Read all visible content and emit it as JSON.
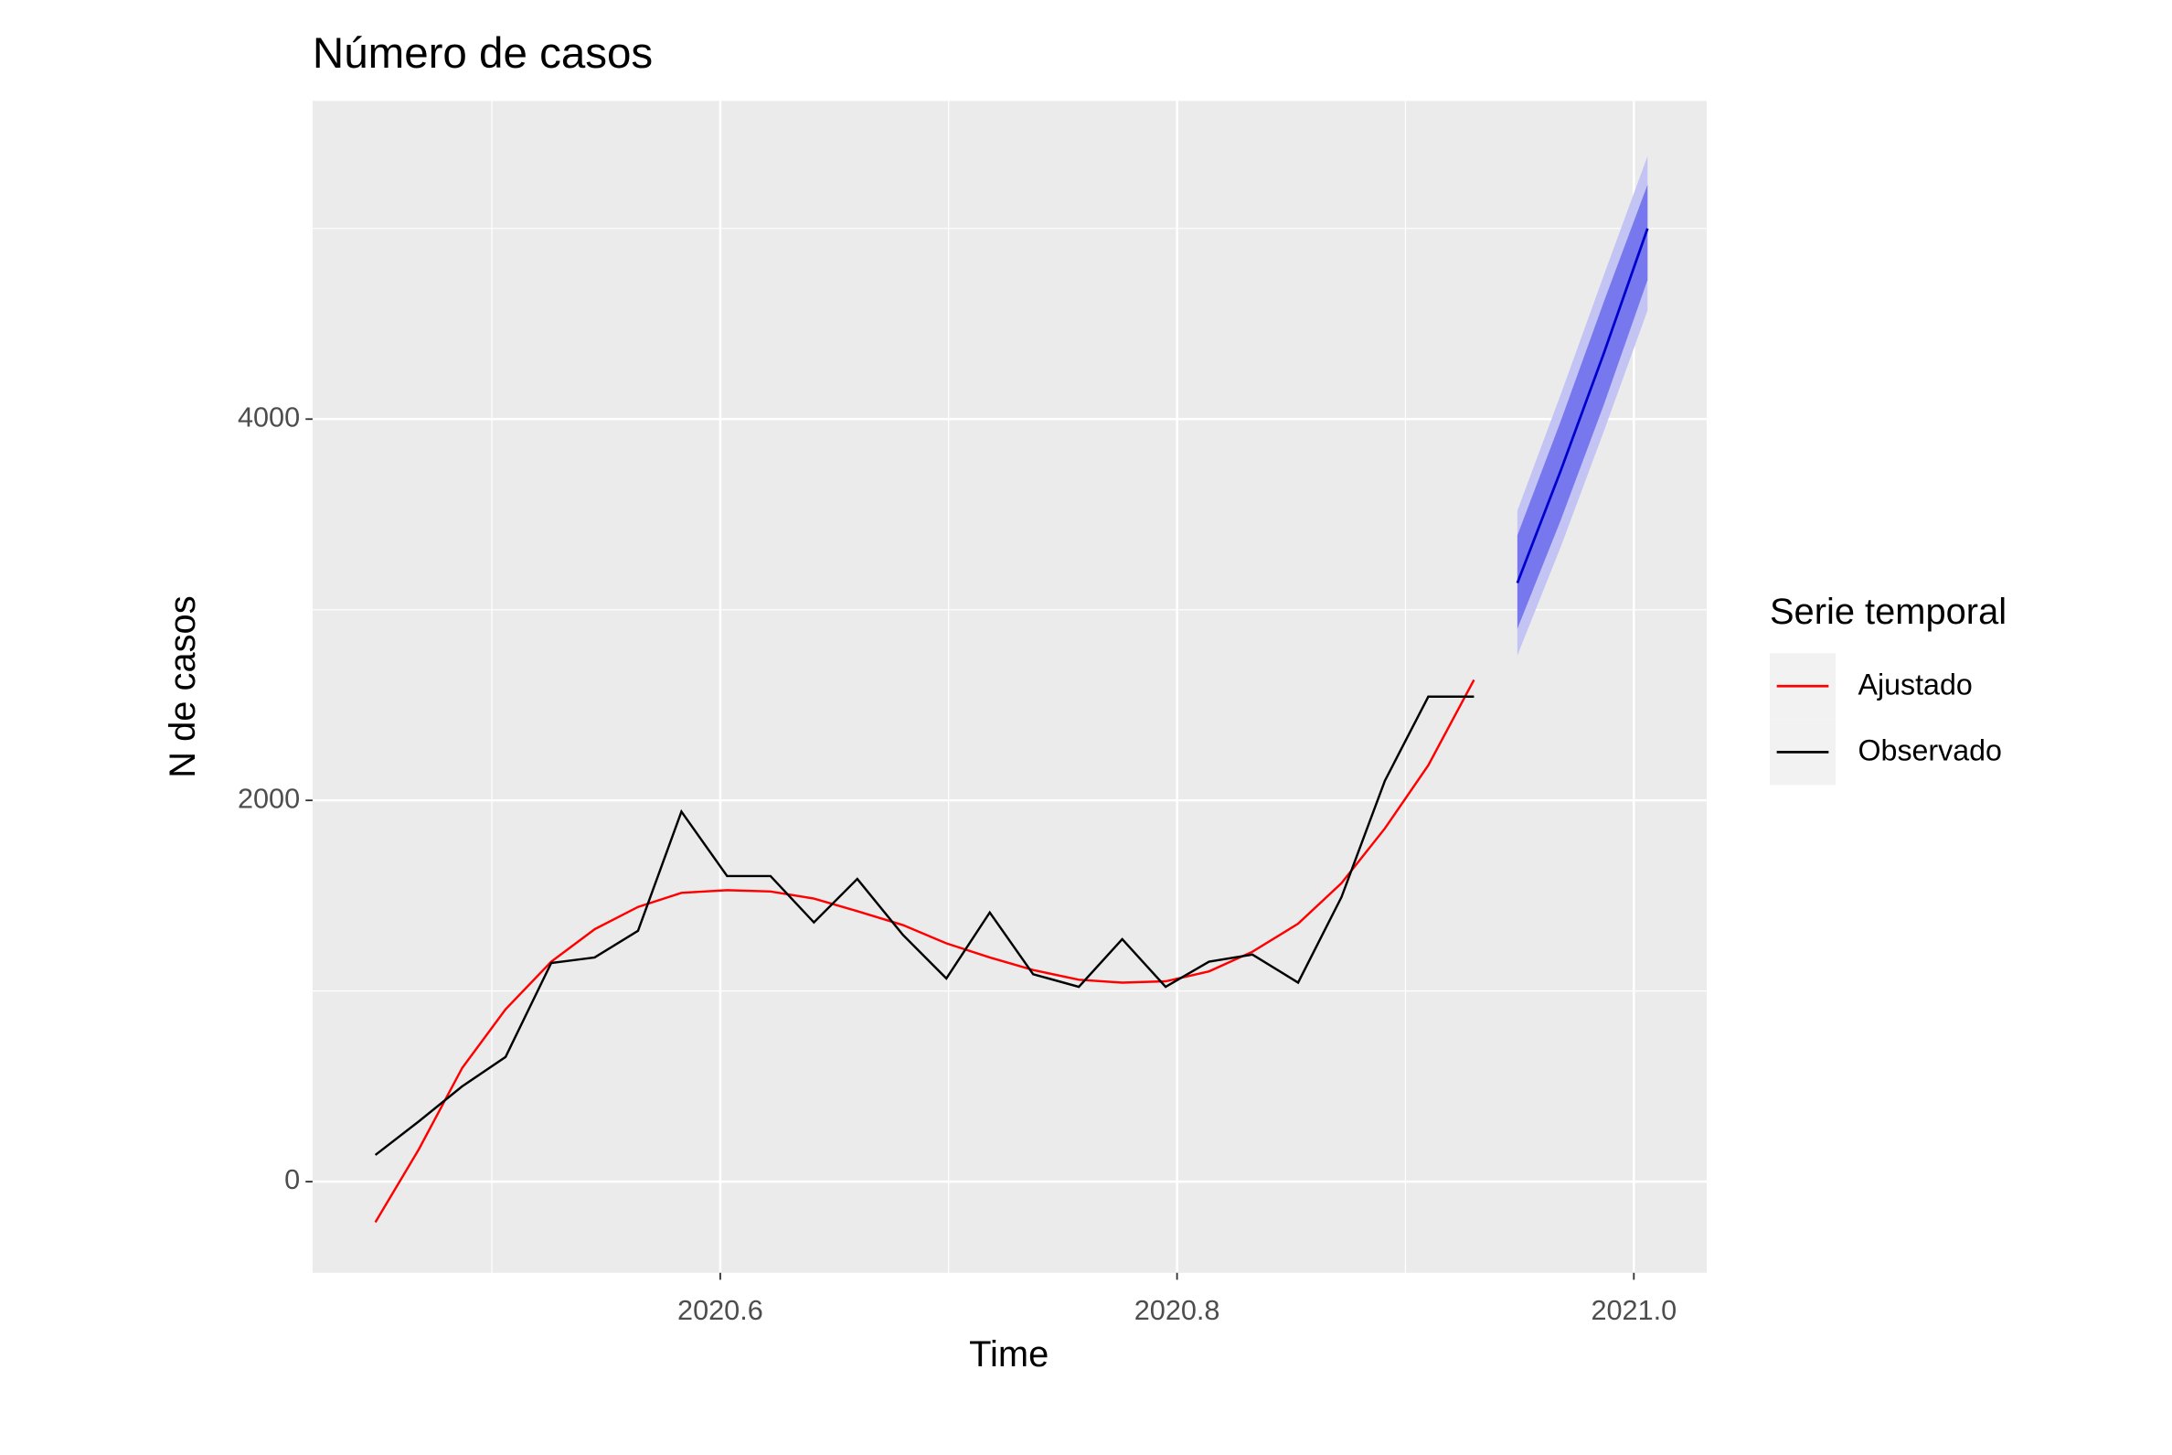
{
  "chart_data": {
    "type": "line",
    "title": "Número de casos",
    "x_label": "Time",
    "y_label": "N de casos",
    "legend_title": "Serie temporal",
    "legend": "right",
    "grid": true,
    "x": [
      2020.449,
      2020.468,
      2020.487,
      2020.506,
      2020.526,
      2020.545,
      2020.564,
      2020.583,
      2020.603,
      2020.622,
      2020.641,
      2020.66,
      2020.68,
      2020.699,
      2020.718,
      2020.737,
      2020.757,
      2020.776,
      2020.795,
      2020.814,
      2020.833,
      2020.853,
      2020.872,
      2020.891,
      2020.91,
      2020.93
    ],
    "series": [
      {
        "name": "Ajustado",
        "color": "#ff0000",
        "values": [
          -213,
          169,
          596,
          904,
          1154,
          1324,
          1441,
          1515,
          1529,
          1522,
          1485,
          1419,
          1346,
          1250,
          1176,
          1110,
          1059,
          1044,
          1051,
          1103,
          1206,
          1353,
          1566,
          1853,
          2184,
          2632
        ]
      },
      {
        "name": "Observado",
        "color": "#000000",
        "values": [
          140,
          316,
          500,
          654,
          1147,
          1176,
          1316,
          1941,
          1603,
          1603,
          1360,
          1588,
          1294,
          1066,
          1412,
          1088,
          1022,
          1272,
          1022,
          1154,
          1191,
          1044,
          1493,
          2103,
          2544,
          2544
        ]
      }
    ],
    "forecast": {
      "x": [
        2020.949,
        2020.968,
        2020.987,
        2021.006
      ],
      "mean": [
        3140,
        3730,
        4350,
        5000
      ],
      "lo80": [
        2900,
        3470,
        4080,
        4730
      ],
      "hi80": [
        3390,
        3990,
        4620,
        5230
      ],
      "lo95": [
        2760,
        3330,
        3940,
        4570
      ],
      "hi95": [
        3520,
        4130,
        4760,
        5380
      ],
      "color": "#0000cc",
      "color80": "#7878ee",
      "color95": "#c4c4f4"
    },
    "xlim": [
      2020.4215,
      2021.0319
    ],
    "ylim": [
      -478,
      5669
    ],
    "xticks": [
      2020.6,
      2020.8,
      {
        "value": 2021,
        "label": "2021.0"
      }
    ],
    "yticks": [
      0,
      2000,
      4000
    ],
    "minor_xticks": [
      2020.5,
      2020.7,
      2020.9
    ],
    "minor_yticks": [
      1000,
      3000,
      5000
    ]
  }
}
